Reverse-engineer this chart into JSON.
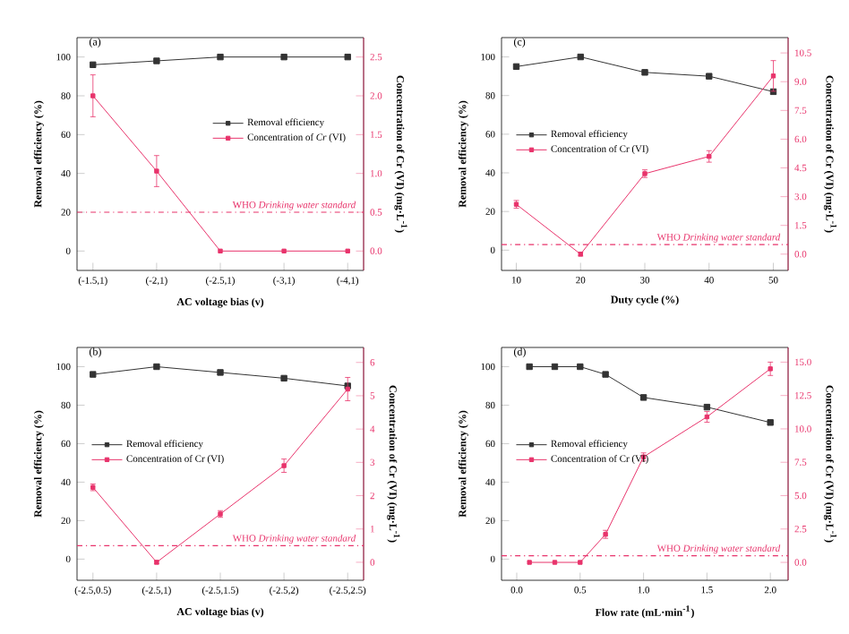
{
  "chart_data": [
    {
      "type": "line",
      "title": "(a)",
      "xlabel": "AC voltage bias (v)",
      "ylabel": "Removal efficiency (%)",
      "y2label": "Concentration of Cr (VI) (mg·L$^{-1}$)",
      "categories": [
        "(-1.5,1)",
        "(-2,1)",
        "(-2.5,1)",
        "(-3,1)",
        "(-4,1)"
      ],
      "series": [
        {
          "name": "Removal efficiency",
          "color": "#333333",
          "values": [
            96,
            98,
            100,
            100,
            100
          ]
        },
        {
          "name": "Concentration of *Cr* (VI)",
          "color": "#e8336b",
          "axis": "y2",
          "values": [
            2.0,
            1.03,
            0.0,
            0.0,
            0.0
          ],
          "errors": [
            0.27,
            0.2,
            null,
            null,
            null
          ]
        }
      ],
      "ylim": [
        -10,
        110
      ],
      "yticks": [
        0,
        20,
        40,
        60,
        80,
        100
      ],
      "y2lim": [
        -0.25,
        2.75
      ],
      "y2ticks": [
        {
          "value": 0,
          "label": "0.0"
        },
        {
          "value": 0.5,
          "label": "0.5"
        },
        {
          "value": 1,
          "label": "1.0"
        },
        {
          "value": 1.5,
          "label": "1.5"
        },
        {
          "value": 2,
          "label": "2.0"
        },
        {
          "value": 2.5,
          "label": "2.5"
        }
      ],
      "ref_lines": [
        {
          "axis": "y2",
          "value": 0.5,
          "label": "WHO *Drinking water standard*",
          "color": "#e8336b",
          "line_style": "dashdot"
        }
      ],
      "legend": "right",
      "marker": "square",
      "grid": false
    },
    {
      "type": "line",
      "title": "(c)",
      "xlabel": "Duty cycle (%)",
      "ylabel": "Removal efficiency (%)",
      "y2label": "Concentration of Cr (VI) (mg·L$^{-1}$)",
      "x": [
        10,
        20,
        30,
        40,
        50
      ],
      "series": [
        {
          "name": "Removal efficiency",
          "color": "#333333",
          "values": [
            95,
            100,
            92,
            90,
            82
          ]
        },
        {
          "name": "Concentration of Cr (VI)",
          "color": "#e8336b",
          "axis": "y2",
          "values": [
            2.6,
            0.0,
            4.2,
            5.1,
            9.3
          ],
          "errors": [
            0.2,
            0.1,
            0.2,
            0.3,
            0.8
          ]
        }
      ],
      "xlim": [
        7.7,
        52.3
      ],
      "xticks": [
        10,
        20,
        30,
        40,
        50
      ],
      "ylim": [
        -10.5,
        110
      ],
      "yticks": [
        0,
        20,
        40,
        60,
        80,
        100
      ],
      "y2lim": [
        -0.85,
        11.3
      ],
      "y2ticks": [
        {
          "value": 0,
          "label": "0.0"
        },
        {
          "value": 1.5,
          "label": "1.5"
        },
        {
          "value": 3,
          "label": "3.0"
        },
        {
          "value": 4.5,
          "label": "4.5"
        },
        {
          "value": 6,
          "label": "6.0"
        },
        {
          "value": 7.5,
          "label": "7.5"
        },
        {
          "value": 9,
          "label": "9.0"
        },
        {
          "value": 10.5,
          "label": "10.5"
        }
      ],
      "ref_lines": [
        {
          "axis": "y2",
          "value": 0.5,
          "label": "WHO *Drinking water standard*",
          "color": "#e8336b",
          "line_style": "dashdot"
        }
      ],
      "legend": "left",
      "marker": "square",
      "grid": false
    },
    {
      "type": "line",
      "title": "(b)",
      "xlabel": "AC voltage bias (v)",
      "ylabel": "Removal efficiency (%)",
      "y2label": "Concentration of Cr (VI) (mg·L$^{-1}$)",
      "categories": [
        "(-2.5,0.5)",
        "(-2.5,1)",
        "(-2.5,1.5)",
        "(-2.5,2)",
        "(-2.5,2.5)"
      ],
      "series": [
        {
          "name": "Removal efficiency",
          "color": "#333333",
          "values": [
            96,
            100,
            97,
            94,
            90
          ]
        },
        {
          "name": "Concentration of Cr (VI)",
          "color": "#e8336b",
          "axis": "y2",
          "values": [
            2.25,
            0.0,
            1.45,
            2.9,
            5.2
          ],
          "errors": [
            0.1,
            0.05,
            0.1,
            0.2,
            0.35
          ]
        }
      ],
      "ylim": [
        -11,
        110
      ],
      "yticks": [
        0,
        20,
        40,
        60,
        80,
        100
      ],
      "y2lim": [
        -0.54,
        6.45
      ],
      "y2ticks": [
        0,
        1,
        2,
        3,
        4,
        5,
        6
      ],
      "ref_lines": [
        {
          "axis": "y2",
          "value": 0.5,
          "label": "WHO *Drinking water standard*",
          "color": "#e8336b",
          "line_style": "dashdot"
        }
      ],
      "legend": "left",
      "marker": "square",
      "grid": false
    },
    {
      "type": "line",
      "title": "(d)",
      "xlabel": "Flow rate (mL·min$^{-1}$)",
      "ylabel": "Removal efficiency (%)",
      "y2label": "Concentration of Cr (VI) (mg·L$^{-1}$)",
      "x": [
        0.1,
        0.3,
        0.5,
        0.7,
        1.0,
        1.5,
        2.0
      ],
      "series": [
        {
          "name": "Removal efficiency",
          "color": "#333333",
          "values": [
            100,
            100,
            100,
            96,
            84,
            79,
            71
          ]
        },
        {
          "name": "Concentration of Cr (VI)",
          "color": "#e8336b",
          "axis": "y2",
          "values": [
            0.0,
            0.0,
            0.0,
            2.1,
            7.9,
            10.9,
            14.5
          ],
          "errors": [
            null,
            null,
            null,
            0.3,
            0.3,
            0.4,
            0.5
          ]
        }
      ],
      "xlim": [
        -0.12,
        2.14
      ],
      "xticks": [
        {
          "value": 0,
          "label": "0.0"
        },
        {
          "value": 0.5,
          "label": "0.5"
        },
        {
          "value": 1,
          "label": "1.0"
        },
        {
          "value": 1.5,
          "label": "1.5"
        },
        {
          "value": 2,
          "label": "2.0"
        }
      ],
      "ylim": [
        -11,
        110
      ],
      "yticks": [
        0,
        20,
        40,
        60,
        80,
        100
      ],
      "y2lim": [
        -1.34,
        16.1
      ],
      "y2ticks": [
        {
          "value": 0,
          "label": "0.0"
        },
        {
          "value": 2.5,
          "label": "2.5"
        },
        {
          "value": 5,
          "label": "5.0"
        },
        {
          "value": 7.5,
          "label": "7.5"
        },
        {
          "value": 10,
          "label": "10.0"
        },
        {
          "value": 12.5,
          "label": "12.5"
        },
        {
          "value": 15,
          "label": "15.0"
        }
      ],
      "ref_lines": [
        {
          "axis": "y2",
          "value": 0.5,
          "label": "WHO *Drinking water standard*",
          "color": "#e8336b",
          "line_style": "dashdot"
        }
      ],
      "legend": "left",
      "marker": "square",
      "grid": false
    }
  ]
}
